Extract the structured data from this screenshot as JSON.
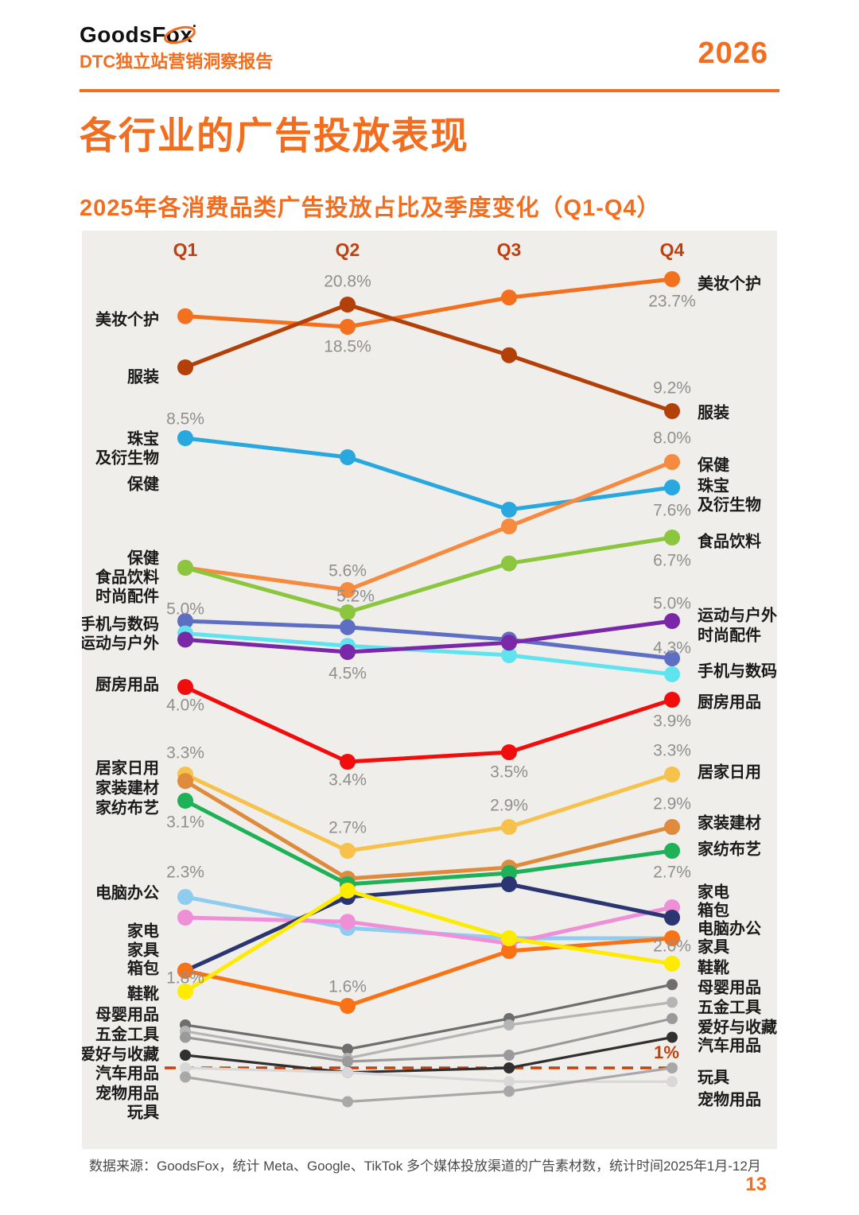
{
  "header": {
    "brand_left": "GoodsF",
    "brand_right": "ox",
    "brand_mark": "▪",
    "report_subtitle": "DTC独立站营销洞察报告",
    "year": "2026",
    "accent_color": "#F26D1E"
  },
  "page_title": "各行业的广告投放表现",
  "chart_title": "2025年各消费品类广告投放占比及季度变化（Q1-Q4）",
  "footnote": "数据来源：GoodsFox，统计 Meta、Google、TikTok 多个媒体投放渠道的广告素材数，统计时间2025年1月-12月",
  "page_number": "13",
  "chart_data": {
    "type": "line",
    "title": "2025年各消费品类广告投放占比及季度变化（Q1-Q4）",
    "x_labels": [
      "Q1",
      "Q2",
      "Q3",
      "Q4"
    ],
    "x_label_color": "#C23F10",
    "unit": "%",
    "grid": false,
    "panel_color": "#EFEEEB",
    "value_label_color": "#8F8F8F",
    "category_label_color": "#1A1A1A",
    "reference_line": {
      "value": 1.0,
      "label": "1%",
      "color": "#C2410C",
      "style": "dashed"
    },
    "series": [
      {
        "name": "美妆个护",
        "color": "#F3701F",
        "values": [
          19.6,
          18.5,
          21.6,
          23.7
        ],
        "point_labels": [
          {
            "q": 1,
            "text": "18.5%",
            "dy": 26
          },
          {
            "q": 3,
            "text": "23.7%",
            "dy": 29
          }
        ]
      },
      {
        "name": "服装",
        "color": "#B34009",
        "values": [
          14.5,
          20.8,
          15.7,
          9.2
        ],
        "point_labels": [
          {
            "q": 1,
            "text": "20.8%",
            "dy": -28
          },
          {
            "q": 3,
            "text": "9.2%",
            "dy": -28
          }
        ]
      },
      {
        "name": "珠宝及衍生物",
        "color": "#29A8E0",
        "values": [
          8.5,
          8.1,
          7.2,
          7.6
        ],
        "point_labels": [
          {
            "q": 0,
            "text": "8.5%",
            "dy": -23
          },
          {
            "q": 3,
            "text": "7.6%",
            "dy": 30
          }
        ]
      },
      {
        "name": "保健",
        "color": "#F68A3E",
        "values": [
          6.0,
          5.6,
          6.9,
          8.0
        ],
        "point_labels": [
          {
            "q": 1,
            "text": "5.6%",
            "dy": -23
          },
          {
            "q": 3,
            "text": "8.0%",
            "dy": -29
          }
        ]
      },
      {
        "name": "食品饮料",
        "color": "#8CC63F",
        "values": [
          6.0,
          5.2,
          6.1,
          6.7
        ],
        "point_labels": [
          {
            "q": 1,
            "text": "5.2%",
            "dy": -19,
            "dx": 10
          },
          {
            "q": 3,
            "text": "6.7%",
            "dy": 30
          }
        ]
      },
      {
        "name": "时尚配件",
        "color": "#5E6EC2",
        "values": [
          5.0,
          4.9,
          4.7,
          4.3
        ],
        "point_labels": [
          {
            "q": 0,
            "text": "5.0%",
            "dy": -14
          },
          {
            "q": 3,
            "text": "4.3%",
            "dy": -12
          }
        ]
      },
      {
        "name": "手机与数码",
        "color": "#5FE3EF",
        "values": [
          4.8,
          4.6,
          4.4,
          4.1
        ],
        "point_labels": []
      },
      {
        "name": "运动与户外",
        "color": "#7A28A8",
        "values": [
          4.7,
          4.5,
          4.65,
          5.0
        ],
        "point_labels": [
          {
            "q": 1,
            "text": "4.5%",
            "dy": 28
          },
          {
            "q": 3,
            "text": "5.0%",
            "dy": -21
          }
        ]
      },
      {
        "name": "厨房用品",
        "color": "#F20D0D",
        "values": [
          4.0,
          3.4,
          3.5,
          3.9
        ],
        "point_labels": [
          {
            "q": 0,
            "text": "4.0%",
            "dy": 24
          },
          {
            "q": 1,
            "text": "3.4%",
            "dy": 24
          },
          {
            "q": 2,
            "text": "3.5%",
            "dy": 26
          },
          {
            "q": 3,
            "text": "3.9%",
            "dy": 28
          }
        ]
      },
      {
        "name": "居家日用",
        "color": "#F6C24B",
        "values": [
          3.3,
          2.7,
          2.9,
          3.3
        ],
        "point_labels": [
          {
            "q": 0,
            "text": "3.3%",
            "dy": -26
          },
          {
            "q": 1,
            "text": "2.7%",
            "dy": -28
          },
          {
            "q": 2,
            "text": "2.9%",
            "dy": -26
          },
          {
            "q": 3,
            "text": "3.3%",
            "dy": -29
          }
        ]
      },
      {
        "name": "家装建材",
        "color": "#DF8B3D",
        "values": [
          3.25,
          2.45,
          2.55,
          2.9
        ],
        "point_labels": [
          {
            "q": 3,
            "text": "2.9%",
            "dy": -28
          }
        ]
      },
      {
        "name": "家纺布艺",
        "color": "#1EB158",
        "values": [
          3.1,
          2.4,
          2.5,
          2.7
        ],
        "point_labels": [
          {
            "q": 0,
            "text": "3.1%",
            "dy": 28
          },
          {
            "q": 3,
            "text": "2.7%",
            "dy": 28
          }
        ]
      },
      {
        "name": "电脑办公",
        "color": "#8FCCF0",
        "values": [
          2.3,
          2.15,
          2.1,
          2.1
        ],
        "point_labels": [
          {
            "q": 0,
            "text": "2.3%",
            "dy": -30
          }
        ]
      },
      {
        "name": "家电",
        "color": "#EE8FD8",
        "values": [
          2.2,
          2.18,
          2.08,
          2.25
        ],
        "point_labels": []
      },
      {
        "name": "箱包",
        "color": "#2B3572",
        "values": [
          1.95,
          2.3,
          2.4,
          2.2
        ],
        "point_labels": []
      },
      {
        "name": "家具",
        "color": "#F97316",
        "values": [
          1.95,
          1.6,
          2.05,
          2.1
        ],
        "point_labels": [
          {
            "q": 1,
            "text": "1.6%",
            "dy": -23
          }
        ]
      },
      {
        "name": "鞋靴",
        "color": "#FFEB00",
        "values": [
          1.8,
          2.35,
          2.1,
          2.0
        ],
        "point_labels": [
          {
            "q": 0,
            "text": "1.8%",
            "dy": -16
          },
          {
            "q": 3,
            "text": "2.0%",
            "dy": -21
          }
        ]
      },
      {
        "name": "母婴用品",
        "color": "#6E6E6E",
        "values": [
          1.45,
          1.25,
          1.5,
          1.85
        ],
        "thin": true,
        "point_labels": []
      },
      {
        "name": "五金工具",
        "color": "#B5B5B5",
        "values": [
          1.4,
          1.15,
          1.45,
          1.65
        ],
        "thin": true,
        "point_labels": []
      },
      {
        "name": "爱好与收藏",
        "color": "#9A9A9A",
        "values": [
          1.35,
          1.1,
          1.2,
          1.5
        ],
        "thin": true,
        "point_labels": []
      },
      {
        "name": "汽车用品",
        "color": "#303030",
        "values": [
          1.2,
          0.95,
          1.0,
          1.35
        ],
        "thin": true,
        "point_labels": []
      },
      {
        "name": "宠物用品",
        "color": "#D8D8D8",
        "values": [
          1.0,
          0.95,
          0.85,
          0.85
        ],
        "thin": true,
        "point_labels": []
      },
      {
        "name": "玩具",
        "color": "#A8A8A8",
        "values": [
          0.9,
          0.65,
          0.75,
          1.0
        ],
        "thin": true,
        "point_labels": []
      }
    ],
    "left_labels": [
      {
        "text": "美妆个护",
        "y": 113
      },
      {
        "text": "服装",
        "y": 185
      },
      {
        "text": "珠宝",
        "y": 263
      },
      {
        "text": "及衍生物",
        "y": 287
      },
      {
        "text": "保健",
        "y": 320
      },
      {
        "text": "保健",
        "y": 413
      },
      {
        "text": "食品饮料",
        "y": 437
      },
      {
        "text": "时尚配件",
        "y": 461
      },
      {
        "text": "手机与数码",
        "y": 496
      },
      {
        "text": "运动与户外",
        "y": 520
      },
      {
        "text": "厨房用品",
        "y": 572
      },
      {
        "text": "居家日用",
        "y": 677
      },
      {
        "text": "家装建材",
        "y": 702
      },
      {
        "text": "家纺布艺",
        "y": 727
      },
      {
        "text": "电脑办公",
        "y": 834
      },
      {
        "text": "家电",
        "y": 882
      },
      {
        "text": "家具",
        "y": 906
      },
      {
        "text": "箱包",
        "y": 929
      },
      {
        "text": "鞋靴",
        "y": 961
      },
      {
        "text": "母婴用品",
        "y": 987
      },
      {
        "text": "五金工具",
        "y": 1012
      },
      {
        "text": "爱好与收藏",
        "y": 1037
      },
      {
        "text": "汽车用品",
        "y": 1061
      },
      {
        "text": "宠物用品",
        "y": 1086
      },
      {
        "text": "玩具",
        "y": 1110
      }
    ],
    "right_labels": [
      {
        "text": "美妆个护",
        "y": 68
      },
      {
        "text": "服装",
        "y": 230
      },
      {
        "text": "保健",
        "y": 296
      },
      {
        "text": "珠宝",
        "y": 322
      },
      {
        "text": "及衍生物",
        "y": 346
      },
      {
        "text": "食品饮料",
        "y": 392
      },
      {
        "text": "运动与户外",
        "y": 485
      },
      {
        "text": "时尚配件",
        "y": 510
      },
      {
        "text": "手机与数码",
        "y": 555
      },
      {
        "text": "厨房用品",
        "y": 594
      },
      {
        "text": "居家日用",
        "y": 682
      },
      {
        "text": "家装建材",
        "y": 746
      },
      {
        "text": "家纺布艺",
        "y": 779
      },
      {
        "text": "家电",
        "y": 833
      },
      {
        "text": "箱包",
        "y": 856
      },
      {
        "text": "电脑办公",
        "y": 879
      },
      {
        "text": "家具",
        "y": 902
      },
      {
        "text": "鞋靴",
        "y": 928
      },
      {
        "text": "母婴用品",
        "y": 953
      },
      {
        "text": "五金工具",
        "y": 978
      },
      {
        "text": "爱好与收藏",
        "y": 1003
      },
      {
        "text": "汽车用品",
        "y": 1026
      },
      {
        "text": "玩具",
        "y": 1066
      },
      {
        "text": "宠物用品",
        "y": 1094
      }
    ]
  }
}
